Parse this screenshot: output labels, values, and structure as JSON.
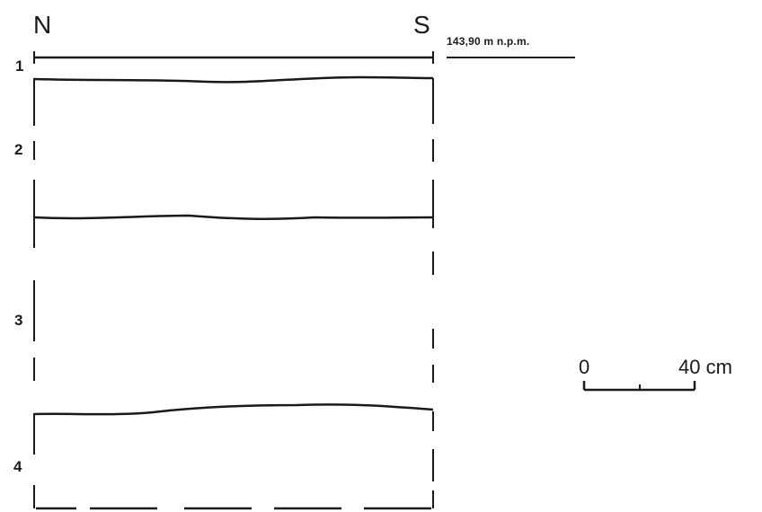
{
  "profile": {
    "orientation": {
      "left": "N",
      "right": "S"
    },
    "elevation": "143,90 m n.p.m.",
    "layers": [
      "1",
      "2",
      "3",
      "4"
    ]
  },
  "scale_bar": {
    "start": "0",
    "end": "40 cm"
  },
  "colors": {
    "ink": "#1a1a1a",
    "background": "#ffffff"
  }
}
